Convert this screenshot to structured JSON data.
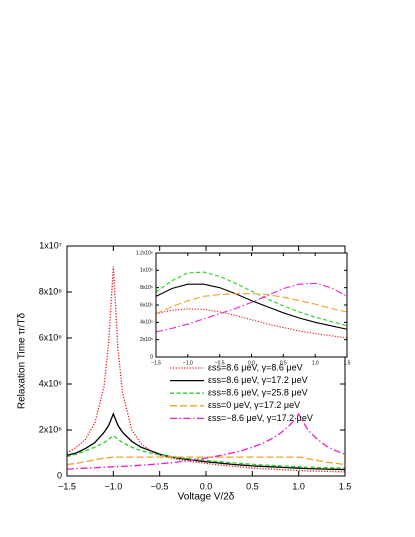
{
  "chart_data": [
    {
      "type": "line",
      "xlabel": "Voltage V/2δ",
      "ylabel": "Relaxation Time τr/Tδ",
      "x": [
        -1.5,
        -1.4,
        -1.3,
        -1.2,
        -1.1,
        -1.05,
        -1.0,
        -0.95,
        -0.9,
        -0.8,
        -0.7,
        -0.6,
        -0.5,
        -0.4,
        -0.3,
        -0.2,
        -0.1,
        0,
        0.1,
        0.2,
        0.3,
        0.4,
        0.5,
        0.6,
        0.7,
        0.8,
        0.9,
        0.95,
        1.0,
        1.05,
        1.1,
        1.2,
        1.3,
        1.4,
        1.5
      ],
      "xlim": [
        -1.5,
        1.5
      ],
      "xticks": [
        {
          "value": -1.5,
          "label": "−1.5"
        },
        {
          "value": -1,
          "label": "−1.0"
        },
        {
          "value": -0.5,
          "label": "−0.5"
        },
        {
          "value": 0,
          "label": "0.0"
        },
        0.5,
        {
          "value": 1,
          "label": "1.0"
        },
        1.5
      ],
      "ylim": [
        0,
        10000000
      ],
      "yticks": [
        0,
        {
          "value": 2000000,
          "label": "2x10⁶"
        },
        {
          "value": 4000000,
          "label": "4x10⁶"
        },
        {
          "value": 6000000,
          "label": "6x10⁶"
        },
        {
          "value": 8000000,
          "label": "8x10⁶"
        },
        {
          "value": 10000000,
          "label": "1x10⁷"
        }
      ],
      "legend": "lower right",
      "series": [
        {
          "name": "εss=8.6 μeV, γ=8.6 μeV",
          "color": "#e8141c",
          "line_style": "dotted",
          "values": [
            1000000,
            1250000,
            1600000,
            2300000,
            3900000,
            5800000,
            9100000,
            5500000,
            3600000,
            2000000,
            1400000,
            1100000,
            900000,
            800000,
            720000,
            660000,
            600000,
            550000,
            500000,
            460000,
            420000,
            380000,
            350000,
            320000,
            300000,
            280000,
            260000,
            250000,
            240000,
            230000,
            220000,
            210000,
            200000,
            190000,
            180000
          ]
        },
        {
          "name": "εss=8.6 μeV, γ=17.2 μeV",
          "color": "#000000",
          "line_style": "solid",
          "values": [
            900000,
            1000000,
            1200000,
            1450000,
            1900000,
            2200000,
            2700000,
            2200000,
            1900000,
            1500000,
            1250000,
            1100000,
            950000,
            850000,
            780000,
            720000,
            670000,
            620000,
            580000,
            540000,
            500000,
            470000,
            440000,
            420000,
            400000,
            380000,
            360000,
            350000,
            340000,
            330000,
            320000,
            310000,
            300000,
            290000,
            280000
          ]
        },
        {
          "name": "εss=8.6 μeV, γ=25.8 μeV",
          "color": "#22d41e",
          "line_style": "dashed",
          "values": [
            850000,
            950000,
            1100000,
            1250000,
            1450000,
            1600000,
            1750000,
            1600000,
            1450000,
            1250000,
            1100000,
            1000000,
            920000,
            860000,
            800000,
            760000,
            720000,
            680000,
            640000,
            600000,
            570000,
            540000,
            510000,
            480000,
            460000,
            440000,
            420000,
            410000,
            400000,
            390000,
            380000,
            370000,
            360000,
            350000,
            340000
          ]
        },
        {
          "name": "εss=0 μeV, γ=17.2 μeV",
          "color": "#f4a02a",
          "line_style": "longdash",
          "values": [
            500000,
            550000,
            620000,
            700000,
            780000,
            800000,
            820000,
            820000,
            820000,
            820000,
            820000,
            820000,
            820000,
            820000,
            820000,
            820000,
            820000,
            820000,
            820000,
            820000,
            820000,
            820000,
            820000,
            820000,
            820000,
            820000,
            820000,
            820000,
            820000,
            800000,
            750000,
            680000,
            600000,
            550000,
            500000
          ]
        },
        {
          "name": "εss=−8.6 μeV, γ=17.2 μeV",
          "color": "#f020c8",
          "line_style": "dashdot",
          "values": [
            300000,
            320000,
            340000,
            360000,
            380000,
            390000,
            400000,
            410000,
            420000,
            440000,
            470000,
            500000,
            530000,
            570000,
            610000,
            660000,
            720000,
            780000,
            850000,
            930000,
            1020000,
            1120000,
            1250000,
            1400000,
            1600000,
            1850000,
            2200000,
            2400000,
            2700000,
            2350000,
            2000000,
            1600000,
            1300000,
            1100000,
            950000
          ]
        }
      ]
    },
    {
      "type": "line",
      "x": [
        -1.5,
        -1.25,
        -1,
        -0.75,
        -0.5,
        -0.25,
        0,
        0.25,
        0.5,
        0.75,
        1,
        1.25,
        1.5
      ],
      "xlim": [
        -1.5,
        1.5
      ],
      "xticks": [
        {
          "value": -1.5,
          "label": "−1.5"
        },
        {
          "value": -1,
          "label": "−1.0"
        },
        {
          "value": -0.5,
          "label": "−0.5"
        },
        {
          "value": 0,
          "label": "0.0"
        },
        0.5,
        {
          "value": 1,
          "label": "1.0"
        },
        1.5
      ],
      "ylim": [
        0,
        1200000
      ],
      "yticks": [
        0,
        {
          "value": 200000,
          "label": "2x10⁵"
        },
        {
          "value": 400000,
          "label": "4x10⁵"
        },
        {
          "value": 600000,
          "label": "6x10⁵"
        },
        {
          "value": 800000,
          "label": "8x10⁵"
        },
        {
          "value": 1000000,
          "label": "1x10⁶"
        },
        {
          "value": 1200000,
          "label": "1.2x10⁶"
        }
      ],
      "series": [
        {
          "color": "#e8141c",
          "line_style": "dotted",
          "values": [
            500000,
            540000,
            555000,
            550000,
            520000,
            480000,
            430000,
            380000,
            340000,
            300000,
            270000,
            245000,
            220000
          ]
        },
        {
          "color": "#000000",
          "line_style": "solid",
          "values": [
            700000,
            790000,
            840000,
            840000,
            800000,
            730000,
            650000,
            580000,
            510000,
            450000,
            400000,
            360000,
            320000
          ]
        },
        {
          "color": "#22d41e",
          "line_style": "dashed",
          "values": [
            750000,
            880000,
            970000,
            980000,
            930000,
            850000,
            760000,
            670000,
            590000,
            520000,
            460000,
            410000,
            360000
          ]
        },
        {
          "color": "#f4a02a",
          "line_style": "longdash",
          "values": [
            500000,
            580000,
            650000,
            700000,
            720000,
            730000,
            730000,
            720000,
            690000,
            650000,
            610000,
            560000,
            520000
          ]
        },
        {
          "color": "#f020c8",
          "line_style": "dashdot",
          "values": [
            290000,
            330000,
            380000,
            440000,
            500000,
            560000,
            630000,
            710000,
            790000,
            840000,
            850000,
            800000,
            700000
          ]
        }
      ]
    }
  ]
}
